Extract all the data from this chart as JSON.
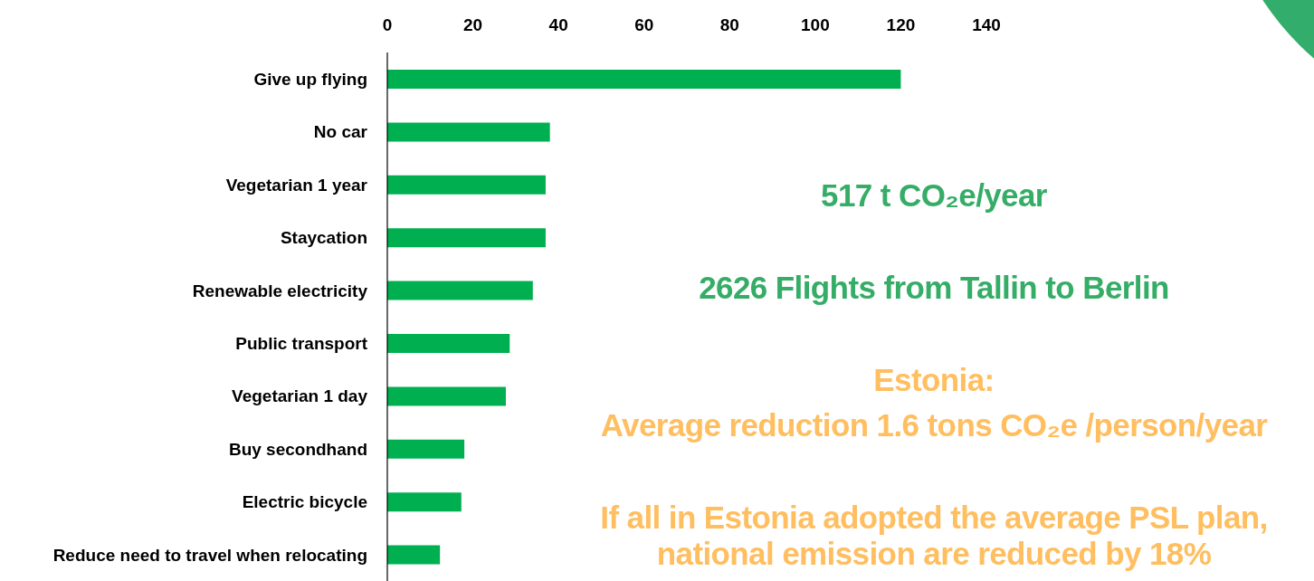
{
  "chart_data": {
    "type": "bar",
    "orientation": "horizontal",
    "categories": [
      "Give up flying",
      "No car",
      "Vegetarian 1 year",
      "Staycation",
      "Renewable electricity",
      "Public transport",
      "Vegetarian 1 day",
      "Buy secondhand",
      "Electric bicycle",
      "Reduce need to travel when relocating"
    ],
    "values": [
      120,
      38,
      37,
      37,
      34,
      28.6,
      27.7,
      18,
      17.3,
      12.3
    ],
    "color": "#00b050",
    "xlim": [
      0,
      140
    ],
    "xticks": [
      0,
      20,
      40,
      60,
      80,
      100,
      120,
      140
    ],
    "annotations": [
      "517 t CO₂e/year",
      "2626 Flights from Tallin to Berlin",
      "Estonia:",
      "Average reduction 1.6 tons CO₂e /person/year",
      "If all in Estonia adopted the average PSL plan, national emission are reduced by 18%"
    ]
  }
}
